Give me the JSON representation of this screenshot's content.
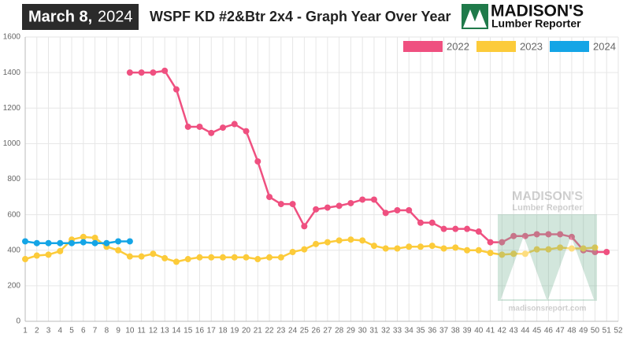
{
  "header": {
    "date": "March 8,",
    "year": "2024"
  },
  "logo": {
    "name": "MADISON'S",
    "tagline": "Lumber Reporter"
  },
  "watermark": {
    "name": "MADISON'S",
    "tagline": "Lumber Reporter",
    "url": "madisonsreport.com"
  },
  "chart_data": {
    "type": "line",
    "title": "WSPF KD #2&Btr 2x4 - Graph Year Over Year",
    "categories": [
      "1",
      "2",
      "3",
      "4",
      "5",
      "6",
      "7",
      "8",
      "9",
      "10",
      "11",
      "12",
      "13",
      "14",
      "15",
      "16",
      "17",
      "18",
      "19",
      "20",
      "21",
      "22",
      "23",
      "24",
      "25",
      "26",
      "27",
      "28",
      "29",
      "30",
      "31",
      "32",
      "33",
      "34",
      "35",
      "36",
      "37",
      "38",
      "39",
      "40",
      "41",
      "42",
      "43",
      "44",
      "45",
      "46",
      "47",
      "48",
      "49",
      "50",
      "51",
      "52"
    ],
    "series": [
      {
        "name": "2022",
        "color": "#ef5080",
        "values": [
          null,
          null,
          null,
          null,
          null,
          null,
          null,
          null,
          null,
          1400,
          1400,
          1400,
          1410,
          1305,
          1095,
          1095,
          1060,
          1090,
          1110,
          1070,
          900,
          700,
          660,
          660,
          535,
          630,
          640,
          650,
          665,
          685,
          685,
          610,
          625,
          625,
          555,
          555,
          520,
          520,
          520,
          505,
          445,
          445,
          480,
          480,
          490,
          490,
          490,
          475,
          400,
          390,
          390,
          null
        ]
      },
      {
        "name": "2023",
        "color": "#fccb3a",
        "values": [
          350,
          370,
          375,
          395,
          460,
          475,
          470,
          420,
          400,
          365,
          365,
          380,
          355,
          335,
          350,
          360,
          360,
          360,
          360,
          360,
          350,
          360,
          360,
          390,
          405,
          435,
          445,
          455,
          460,
          455,
          425,
          410,
          410,
          420,
          420,
          425,
          410,
          415,
          400,
          400,
          385,
          375,
          380,
          380,
          405,
          405,
          415,
          410,
          410,
          415,
          null,
          null
        ]
      },
      {
        "name": "2024",
        "color": "#14a5e6",
        "values": [
          450,
          440,
          440,
          440,
          440,
          445,
          440,
          440,
          450,
          450,
          null,
          null,
          null,
          null,
          null,
          null,
          null,
          null,
          null,
          null,
          null,
          null,
          null,
          null,
          null,
          null,
          null,
          null,
          null,
          null,
          null,
          null,
          null,
          null,
          null,
          null,
          null,
          null,
          null,
          null,
          null,
          null,
          null,
          null,
          null,
          null,
          null,
          null,
          null,
          null,
          null,
          null
        ]
      }
    ],
    "ylim": [
      0,
      1600
    ],
    "yticks": [
      0,
      200,
      400,
      600,
      800,
      1000,
      1200,
      1400,
      1600
    ],
    "grid": true,
    "legend": "top-right"
  }
}
